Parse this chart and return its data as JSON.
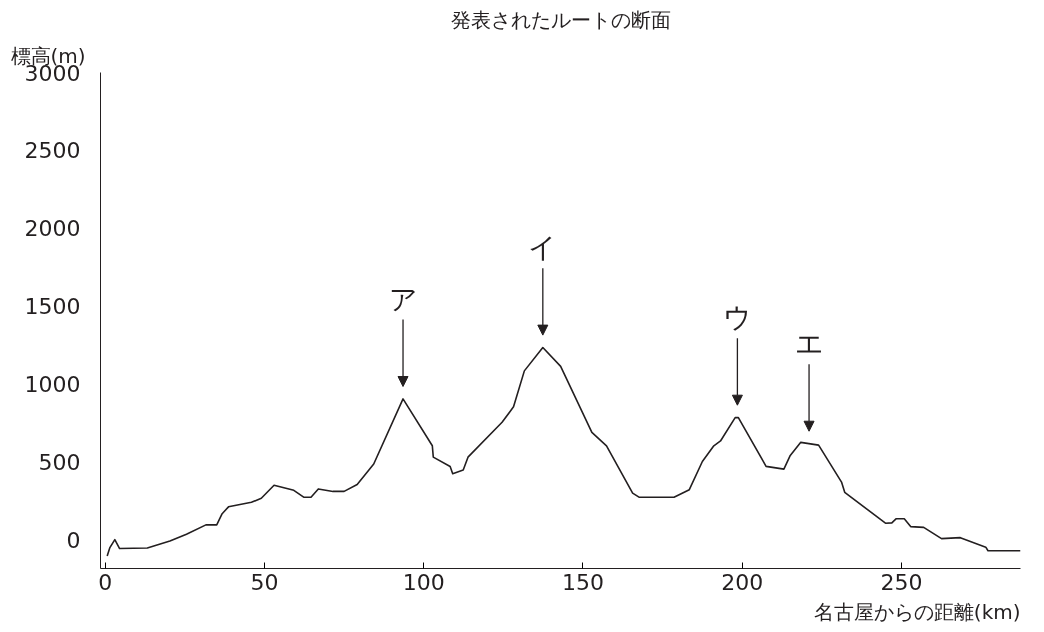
{
  "chart_data": {
    "type": "line",
    "title": "発表されたルートの断面",
    "xlabel": "名古屋からの距離(km)",
    "ylabel": "標高(m)",
    "xlim": [
      -1.5,
      287.4
    ],
    "ylim": [
      -185,
      3000
    ],
    "xticks": [
      0,
      50,
      100,
      150,
      200,
      250
    ],
    "yticks": [
      0,
      500,
      1000,
      1500,
      2000,
      2500,
      3000
    ],
    "grid": false,
    "marker": "none",
    "line_style": "solid",
    "series": [
      {
        "color": "#231f20",
        "x": [
          0.6,
          1.4,
          3.0,
          4.5,
          13.2,
          20.3,
          25.5,
          31.6,
          35.0,
          36.7,
          38.7,
          45.9,
          49.0,
          53.0,
          59.2,
          62.3,
          64.6,
          66.9,
          71.5,
          75.0,
          79.1,
          84.3,
          93.5,
          102.7,
          103.0,
          108.3,
          109.1,
          112.4,
          113.9,
          124.6,
          128.2,
          131.6,
          137.4,
          143.0,
          152.8,
          157.4,
          165.6,
          167.6,
          178.6,
          183.4,
          187.5,
          191.1,
          193.2,
          197.8,
          198.8,
          207.5,
          213.1,
          215.1,
          218.4,
          224.0,
          231.2,
          232.2,
          245.0,
          247.0,
          248.3,
          250.9,
          252.9,
          257.0,
          262.6,
          268.5,
          276.5,
          277.2,
          287.4
        ],
        "values": [
          -105,
          -53,
          0,
          -57,
          -53,
          -9,
          35,
          95,
          95,
          167,
          211,
          240,
          266,
          350,
          317,
          273,
          273,
          326,
          310,
          310,
          354,
          486,
          904,
          603,
          530,
          470,
          424,
          447,
          530,
          754,
          853,
          1084,
          1234,
          1113,
          689,
          603,
          299,
          273,
          273,
          321,
          502,
          603,
          634,
          784,
          784,
          471,
          453,
          541,
          625,
          607,
          370,
          304,
          106,
          108,
          134,
          134,
          84,
          79,
          7,
          13,
          -48,
          -71,
          -71
        ]
      }
    ],
    "annotations": [
      {
        "text": "ア",
        "x": 93.5,
        "y": 904
      },
      {
        "text": "イ",
        "x": 137.4,
        "y": 1234
      },
      {
        "text": "ウ",
        "x": 198.5,
        "y": 784
      },
      {
        "text": "エ",
        "x": 221.0,
        "y": 617
      }
    ]
  }
}
